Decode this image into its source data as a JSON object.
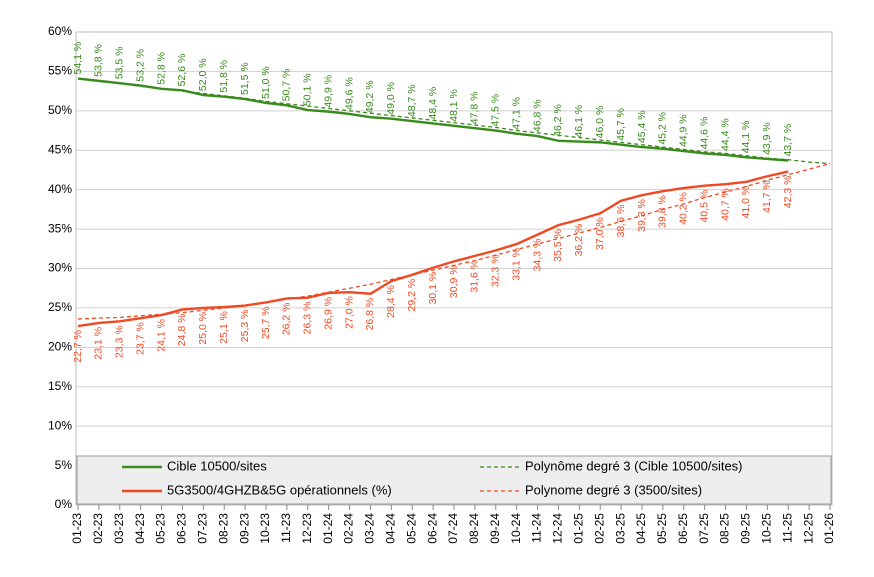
{
  "chart_data": {
    "type": "line",
    "categories": [
      "01-23",
      "02-23",
      "03-23",
      "04-23",
      "05-23",
      "06-23",
      "07-23",
      "08-23",
      "09-23",
      "10-23",
      "11-23",
      "12-23",
      "01-24",
      "02-24",
      "03-24",
      "04-24",
      "05-24",
      "06-24",
      "07-24",
      "08-24",
      "09-24",
      "10-24",
      "11-24",
      "12-24",
      "01-25",
      "02-25",
      "03-25",
      "04-25",
      "05-25",
      "06-25",
      "07-25",
      "08-25",
      "09-25",
      "10-25",
      "11-25",
      "12-25",
      "01-26"
    ],
    "ylim": [
      0,
      60
    ],
    "yticks": [
      {
        "value": 0,
        "label": "0%"
      },
      {
        "value": 5,
        "label": "5%"
      },
      {
        "value": 10,
        "label": "10%"
      },
      {
        "value": 15,
        "label": "15%"
      },
      {
        "value": 20,
        "label": "20%"
      },
      {
        "value": 25,
        "label": "25%"
      },
      {
        "value": 30,
        "label": "30%"
      },
      {
        "value": 35,
        "label": "35%"
      },
      {
        "value": 40,
        "label": "40%"
      },
      {
        "value": 45,
        "label": "45%"
      },
      {
        "value": 50,
        "label": "50%"
      },
      {
        "value": 55,
        "label": "55%"
      },
      {
        "value": 60,
        "label": "60%"
      }
    ],
    "grid": true,
    "legend": "bottom",
    "series": [
      {
        "name": "Cible 10500/sites",
        "color": "#3a8a1e",
        "line_style": "solid",
        "label_side": "above",
        "values": [
          54.1,
          53.8,
          53.5,
          53.2,
          52.8,
          52.6,
          52.0,
          51.8,
          51.5,
          51.0,
          50.7,
          50.1,
          49.9,
          49.6,
          49.2,
          49.0,
          48.7,
          48.4,
          48.1,
          47.8,
          47.5,
          47.1,
          46.8,
          46.2,
          46.1,
          46.0,
          45.7,
          45.4,
          45.2,
          44.9,
          44.6,
          44.4,
          44.1,
          43.9,
          43.7,
          null,
          null
        ],
        "value_labels": [
          "54,1 %",
          "53,8 %",
          "53,5 %",
          "53,2 %",
          "52,8 %",
          "52,6 %",
          "52,0 %",
          "51,8 %",
          "51,5 %",
          "51,0 %",
          "50,7 %",
          "50,1 %",
          "49,9 %",
          "49,6 %",
          "49,2 %",
          "49,0 %",
          "48,7 %",
          "48,4 %",
          "48,1 %",
          "47,8 %",
          "47,5 %",
          "47,1 %",
          "46,8 %",
          "46,2 %",
          "46,1 %",
          "46,0 %",
          "45,7 %",
          "45,4 %",
          "45,2 %",
          "44,9 %",
          "44,6 %",
          "44,4 %",
          "44,1 %",
          "43,9 %",
          "43,7 %",
          null,
          null
        ]
      },
      {
        "name": "5G3500/4GHZB&5G opérationnels (%)",
        "color": "#ef4a24",
        "line_style": "solid",
        "label_side": "below",
        "values": [
          22.7,
          23.1,
          23.3,
          23.7,
          24.1,
          24.8,
          25.0,
          25.1,
          25.3,
          25.7,
          26.2,
          26.3,
          26.9,
          27.0,
          26.8,
          28.4,
          29.2,
          30.1,
          30.9,
          31.6,
          32.3,
          33.1,
          34.3,
          35.5,
          36.2,
          37.0,
          38.6,
          39.3,
          39.8,
          40.2,
          40.5,
          40.7,
          41.0,
          41.7,
          42.3,
          null,
          null
        ],
        "value_labels": [
          "22,7 %",
          "23,1 %",
          "23,3 %",
          "23,7 %",
          "24,1 %",
          "24,8 %",
          "25,0 %",
          "25,1 %",
          "25,3 %",
          "25,7 %",
          "26,2 %",
          "26,3 %",
          "26,9 %",
          "27,0 %",
          "26,8 %",
          "28,4 %",
          "29,2 %",
          "30,1 %",
          "30,9 %",
          "31,6 %",
          "32,3 %",
          "33,1 %",
          "34,3 %",
          "35,5 %",
          "36,2 %",
          "37,0 %",
          "38,6 %",
          "39,3 %",
          "39,8 %",
          "40,2 %",
          "40,5 %",
          "40,7 %",
          "41,0 %",
          "41,7 %",
          "42,3 %",
          null,
          null
        ]
      },
      {
        "name": "Polynôme degré 3 (Cible 10500/sites)",
        "color": "#3a8a1e",
        "line_style": "dashed",
        "values": [
          54.1,
          53.8,
          53.5,
          53.1,
          52.8,
          52.5,
          52.2,
          51.9,
          51.6,
          51.2,
          50.9,
          50.6,
          50.3,
          50.0,
          49.7,
          49.4,
          49.1,
          48.8,
          48.5,
          48.2,
          47.9,
          47.5,
          47.2,
          46.9,
          46.6,
          46.3,
          46.0,
          45.7,
          45.4,
          45.1,
          44.8,
          44.6,
          44.3,
          44.0,
          43.8,
          43.5,
          43.3
        ]
      },
      {
        "name": "Polynome degré 3 (3500/sites)",
        "color": "#ef4a24",
        "line_style": "dashed",
        "values": [
          23.6,
          23.7,
          23.8,
          24.0,
          24.2,
          24.4,
          24.7,
          25.0,
          25.3,
          25.7,
          26.1,
          26.5,
          27.0,
          27.5,
          28.0,
          28.6,
          29.2,
          29.8,
          30.4,
          31.0,
          31.7,
          32.4,
          33.1,
          33.8,
          34.5,
          35.2,
          36.0,
          36.7,
          37.5,
          38.2,
          39.0,
          39.7,
          40.4,
          41.2,
          41.9,
          42.6,
          43.3
        ]
      }
    ]
  }
}
